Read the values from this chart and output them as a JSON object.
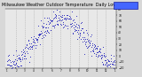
{
  "title": "Milwaukee Weather Outdoor Temperature  Daily Low",
  "title_fontsize": 3.5,
  "bg_color": "#d8d8d8",
  "plot_bg_color": "#e8e8e8",
  "dot_color": "#2222bb",
  "legend_bg": "#4466ff",
  "legend_edge": "#000088",
  "ylim": [
    -20,
    80
  ],
  "ytick_vals": [
    -20,
    -10,
    0,
    10,
    20,
    30,
    40,
    50,
    60,
    70,
    80
  ],
  "num_points": 365,
  "seed": 42,
  "grid_color": "#aaaaaa",
  "month_starts": [
    0,
    31,
    59,
    90,
    120,
    151,
    181,
    212,
    243,
    273,
    304,
    334
  ]
}
